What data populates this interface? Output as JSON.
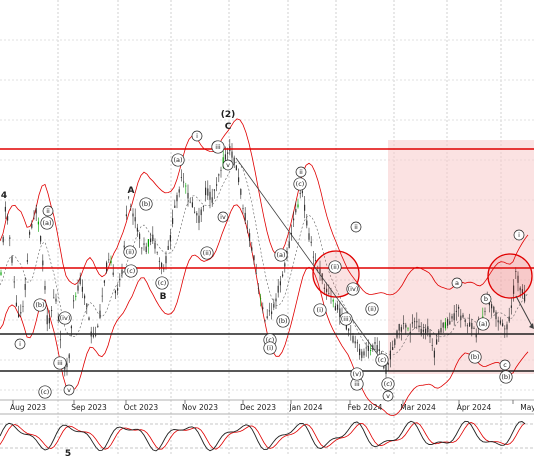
{
  "chart_data": [
    {
      "type": "candlestick",
      "x_tick_labels": [
        "Aug 2023",
        "Sep 2023",
        "Oct 2023",
        "Nov 2023",
        "Dec 2023",
        "Jan 2024",
        "Feb 2024",
        "Mar 2024",
        "Apr 2024",
        "May"
      ],
      "grid": true,
      "horizontal_levels": [
        {
          "level": "upper-resistance",
          "color": "#e00000"
        },
        {
          "level": "middle-resistance",
          "color": "#e00000"
        },
        {
          "level": "upper-support",
          "color": "#202020"
        },
        {
          "level": "lower-support",
          "color": "#202020"
        }
      ],
      "highlight_zone": {
        "color": "#f7caca",
        "from": "Feb 2024",
        "to": "May"
      },
      "indicators": [
        "bollinger-bands",
        "moving-average"
      ],
      "wave_labels": {
        "plain": [
          "4",
          "A",
          "B",
          "C",
          "(2)",
          "5"
        ],
        "circled": [
          "i",
          "ii",
          "iii",
          "iv",
          "v",
          "a",
          "b",
          "c",
          "(a)",
          "(b)",
          "(c)",
          "(i)",
          "(ii)",
          "(iii)",
          "(iv)",
          "(v)"
        ]
      },
      "colors": {
        "bands": "#e00000",
        "candles": "#303030",
        "accent_green": "#00a000",
        "arrow": "#404040"
      }
    },
    {
      "type": "line",
      "indicator": "stochastic-oscillator",
      "series_count": 2,
      "colors": {
        "main": "#202020",
        "signal": "#e00000"
      }
    }
  ]
}
